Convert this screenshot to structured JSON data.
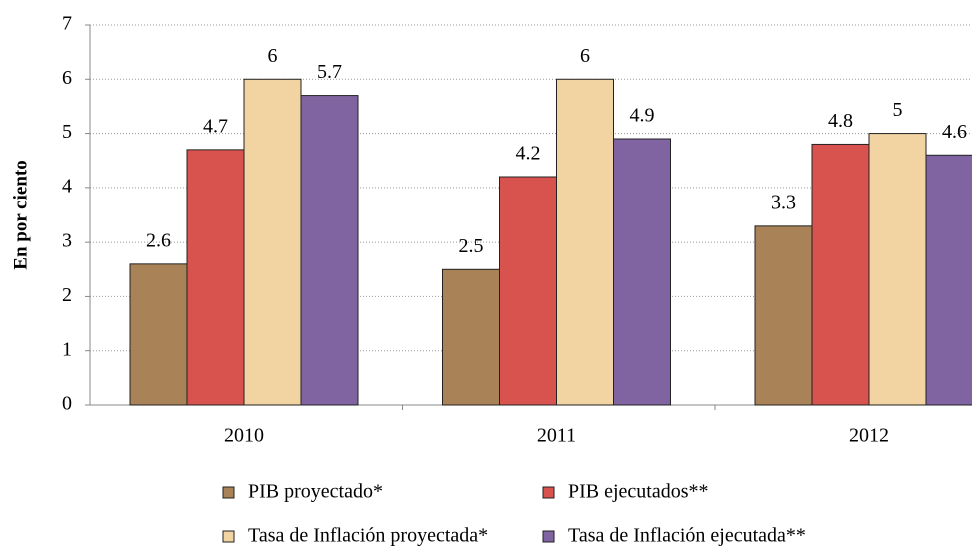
{
  "chart_data": {
    "type": "bar",
    "y_label": "En por ciento",
    "categories": [
      "2010",
      "2011",
      "2012"
    ],
    "series": [
      {
        "name": "PIB proyectado*",
        "color": "#a98357",
        "values": [
          2.6,
          2.5,
          3.3
        ]
      },
      {
        "name": "PIB ejecutados**",
        "color": "#d9534e",
        "values": [
          4.7,
          4.2,
          4.8
        ]
      },
      {
        "name": "Tasa de Inflación proyectada*",
        "color": "#f2d3a2",
        "values": [
          6,
          6,
          5
        ]
      },
      {
        "name": "Tasa de Inflación ejecutada**",
        "color": "#8064a2",
        "values": [
          5.7,
          4.9,
          4.6
        ]
      }
    ],
    "ylim": [
      0,
      7
    ],
    "yticks": [
      0,
      1,
      2,
      3,
      4,
      5,
      6,
      7
    ],
    "grid": true,
    "legend": "bottom"
  }
}
